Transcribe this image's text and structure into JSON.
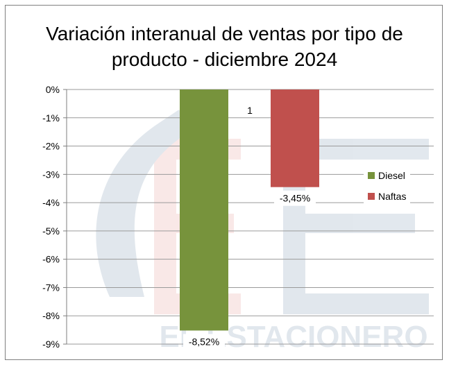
{
  "chart_data": {
    "type": "bar",
    "title": "Variación interanual  de ventas por tipo de producto - diciembre 2024",
    "categories": [
      "1"
    ],
    "series": [
      {
        "name": "Diesel",
        "values": [
          -8.52
        ],
        "label": "-8,52%",
        "color": "#77933c"
      },
      {
        "name": "Naftas",
        "values": [
          -3.45
        ],
        "label": "-3,45%",
        "color": "#c0504d"
      }
    ],
    "ylim": [
      -9,
      0
    ],
    "y_ticks": [
      "0%",
      "-1%",
      "-2%",
      "-3%",
      "-4%",
      "-5%",
      "-6%",
      "-7%",
      "-8%",
      "-9%"
    ],
    "grid": true,
    "legend": "right"
  },
  "watermark": "EL ESTACIONERO"
}
